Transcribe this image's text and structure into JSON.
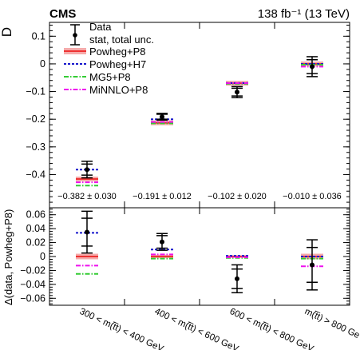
{
  "header": {
    "experiment": "CMS",
    "lumi_energy": "138 fb⁻¹ (13 TeV)"
  },
  "chart_data": [
    {
      "type": "scatter",
      "panel": "top",
      "ylabel": "D",
      "ylim": [
        -0.52,
        0.15
      ],
      "yticks": [
        "0.1",
        "0",
        "−0.1",
        "−0.2",
        "−0.3",
        "−0.4"
      ],
      "yticks_values": [
        0.1,
        0,
        -0.1,
        -0.2,
        -0.3,
        -0.4
      ],
      "grid": false,
      "legend_position": "top-left",
      "categories": [
        "300 < m(t̅t) < 400 GeV",
        "400 < m(t̅t) < 600 GeV",
        "600 < m(t̅t) < 800 GeV",
        "m(t̅t) > 800 GeV"
      ],
      "data": {
        "name": "Data",
        "values": [
          -0.382,
          -0.191,
          -0.102,
          -0.01
        ],
        "stat_unc": [
          0.02,
          0.009,
          0.014,
          0.025
        ],
        "total_unc": [
          0.03,
          0.012,
          0.02,
          0.036
        ]
      },
      "value_labels": [
        "−0.382 ± 0.030",
        "−0.191 ± 0.012",
        "−0.102 ± 0.020",
        "−0.010 ± 0.036"
      ],
      "predictions": [
        {
          "name": "Powheg+P8",
          "values": [
            -0.416,
            -0.213,
            -0.07,
            0.0
          ],
          "color": "#ee3333",
          "style": "band"
        },
        {
          "name": "Powheg+H7",
          "values": [
            -0.382,
            -0.2,
            -0.069,
            0.0
          ],
          "color": "#1a1acc",
          "style": "dashed"
        },
        {
          "name": "MG5+P8",
          "values": [
            -0.44,
            -0.215,
            -0.072,
            -0.003
          ],
          "color": "#33cc33",
          "style": "dash-dot"
        },
        {
          "name": "MiNNLO+P8",
          "values": [
            -0.428,
            -0.21,
            -0.07,
            -0.01
          ],
          "color": "#ee11ee",
          "style": "dash-dot"
        }
      ],
      "legend": [
        "Data",
        "stat, total unc.",
        "Powheg+P8",
        "Powheg+H7",
        "MG5+P8",
        "MiNNLO+P8"
      ]
    },
    {
      "type": "scatter",
      "panel": "bottom",
      "ylabel": "Δ(data, Powheg+P8)",
      "ylim": [
        -0.07,
        0.07
      ],
      "yticks": [
        "0.06",
        "0.04",
        "0.02",
        "0",
        "−0.02",
        "−0.04",
        "−0.06"
      ],
      "yticks_values": [
        0.06,
        0.04,
        0.02,
        0,
        -0.02,
        -0.04,
        -0.06
      ],
      "grid": false,
      "categories": [
        "300 < m(t̅t) < 400 GeV",
        "400 < m(t̅t) < 600 GeV",
        "600 < m(t̅t) < 800 GeV",
        "m(t̅t) > 800 GeV"
      ],
      "data": {
        "name": "Data",
        "values": [
          0.035,
          0.021,
          -0.032,
          -0.012
        ],
        "stat_unc": [
          0.02,
          0.009,
          0.014,
          0.025
        ],
        "total_unc": [
          0.03,
          0.012,
          0.02,
          0.036
        ]
      },
      "band_halfwidth": [
        0.004,
        0.0025,
        0.0018,
        0.004
      ],
      "predictions": [
        {
          "name": "Powheg+P8",
          "values": [
            0,
            0,
            0,
            0
          ],
          "color": "#ee3333",
          "style": "band"
        },
        {
          "name": "Powheg+H7",
          "values": [
            0.034,
            0.01,
            0.001,
            0.0
          ],
          "color": "#1a1acc",
          "style": "dashed"
        },
        {
          "name": "MG5+P8",
          "values": [
            -0.025,
            -0.003,
            -0.002,
            -0.003
          ],
          "color": "#33cc33",
          "style": "dash-dot"
        },
        {
          "name": "MiNNLO+P8",
          "values": [
            -0.013,
            0.003,
            -0.001,
            -0.014
          ],
          "color": "#ee11ee",
          "style": "dash-dot"
        }
      ]
    }
  ]
}
